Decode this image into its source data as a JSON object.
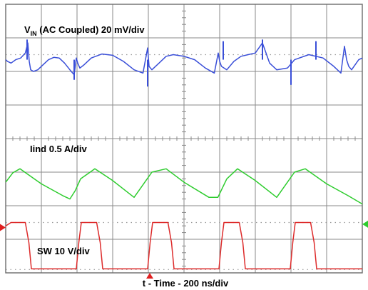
{
  "chart_data": {
    "type": "line",
    "title": "",
    "xlabel": "t - Time - 200 ns/div",
    "ylabel": "",
    "x_unit": "div",
    "y_unit": "div",
    "xlim": [
      0,
      10
    ],
    "ylim": [
      0,
      8
    ],
    "grid": true,
    "grid_divisions": {
      "x": 10,
      "y": 8
    },
    "switching_period_div": 2.0,
    "series": [
      {
        "name": "VIN (AC Coupled) 20 mV/div",
        "label_main": "V",
        "label_sub": "IN",
        "label_rest": " (AC Coupled) 20 mV/div",
        "color": "#3a4fd8",
        "x": [
          0.0,
          0.05,
          0.15,
          0.28,
          0.42,
          0.55,
          0.62,
          0.66,
          0.7,
          0.78,
          0.9,
          1.05,
          1.2,
          1.35,
          1.5,
          1.65,
          1.8,
          1.92,
          1.98,
          2.02,
          2.08,
          2.2,
          2.4,
          2.7,
          3.0,
          3.3,
          3.6,
          3.85,
          3.98,
          4.02,
          4.1,
          4.3,
          4.5,
          4.7,
          5.0,
          5.3,
          5.6,
          5.85,
          5.96,
          6.0,
          6.05,
          6.2,
          6.4,
          6.6,
          6.8,
          7.0,
          7.2,
          7.4,
          7.6,
          7.9,
          8.1,
          8.5,
          8.9,
          9.2,
          9.4,
          9.5,
          9.56,
          9.62,
          9.7,
          9.9,
          10.0
        ],
        "y": [
          6.35,
          6.3,
          6.25,
          6.35,
          6.4,
          6.55,
          6.85,
          6.3,
          6.05,
          6.0,
          6.05,
          6.2,
          6.35,
          6.42,
          6.4,
          6.25,
          6.05,
          5.9,
          6.4,
          6.25,
          6.1,
          6.2,
          6.4,
          6.52,
          6.48,
          6.3,
          6.05,
          5.95,
          6.7,
          6.15,
          6.05,
          6.25,
          6.45,
          6.5,
          6.45,
          6.35,
          6.1,
          5.95,
          6.55,
          6.3,
          6.15,
          6.05,
          6.3,
          6.45,
          6.5,
          6.55,
          6.85,
          6.25,
          6.05,
          6.1,
          6.35,
          6.5,
          6.4,
          6.15,
          5.95,
          6.75,
          6.35,
          6.15,
          6.05,
          6.35,
          6.4
        ],
        "spikes": [
          {
            "x": 0.6,
            "y": 6.95
          },
          {
            "x": 1.92,
            "y": 5.75
          },
          {
            "x": 3.98,
            "y": 5.55
          },
          {
            "x": 6.1,
            "y": 6.9
          },
          {
            "x": 7.2,
            "y": 6.95
          },
          {
            "x": 8.0,
            "y": 5.6
          },
          {
            "x": 8.7,
            "y": 6.9
          }
        ]
      },
      {
        "name": "Iind 0.5 A/div",
        "color": "#2ecc2e",
        "x": [
          0.0,
          0.2,
          0.4,
          1.0,
          1.6,
          1.8,
          1.95,
          2.1,
          2.5,
          3.0,
          3.6,
          4.1,
          4.5,
          5.0,
          5.7,
          5.95,
          6.2,
          6.5,
          7.0,
          7.6,
          8.1,
          8.4,
          9.0,
          9.6,
          10.0
        ],
        "y": [
          2.7,
          2.98,
          3.1,
          2.65,
          2.3,
          2.2,
          2.45,
          2.8,
          3.1,
          2.75,
          2.25,
          3.0,
          3.1,
          2.7,
          2.25,
          2.25,
          2.8,
          3.1,
          2.75,
          2.25,
          3.0,
          3.1,
          2.65,
          2.3,
          2.05
        ]
      },
      {
        "name": "SW 10 V/div",
        "color": "#dd2b2b",
        "x": [
          0.0,
          0.15,
          0.55,
          0.65,
          0.72,
          1.98,
          2.05,
          2.12,
          2.55,
          2.65,
          2.72,
          3.98,
          4.05,
          4.12,
          4.55,
          4.65,
          4.72,
          5.98,
          6.05,
          6.12,
          6.55,
          6.65,
          6.72,
          7.98,
          8.05,
          8.12,
          8.55,
          8.65,
          8.72,
          10.0
        ],
        "y": [
          1.4,
          1.5,
          1.5,
          0.9,
          0.12,
          0.12,
          0.9,
          1.5,
          1.5,
          0.9,
          0.12,
          0.12,
          0.9,
          1.5,
          1.5,
          0.9,
          0.12,
          0.12,
          0.9,
          1.5,
          1.5,
          0.9,
          0.12,
          0.12,
          0.9,
          1.5,
          1.5,
          0.9,
          0.12,
          0.12
        ]
      }
    ]
  },
  "labels": {
    "iind": "Iind 0.5 A/div",
    "sw": "SW 10 V/div",
    "time": "t - Time - 200 ns/div"
  },
  "colors": {
    "grid": "#8a8a8a",
    "dots": "#9a9a9a",
    "frame": "#6d6d6d",
    "marker_left": "#e02020",
    "marker_bottom": "#e02020",
    "marker_right": "#2ecc2e"
  }
}
